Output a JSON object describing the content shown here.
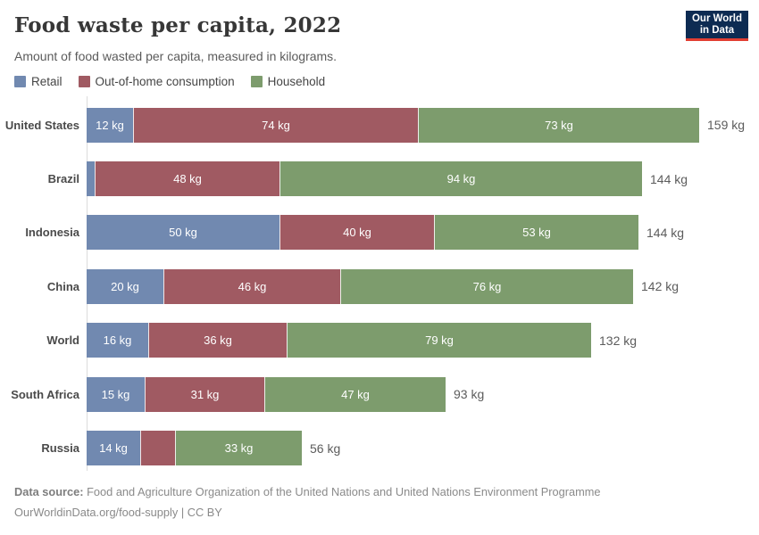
{
  "header": {
    "title": "Food waste per capita, 2022",
    "subtitle": "Amount of food wasted per capita, measured in kilograms.",
    "logo": {
      "line1": "Our World",
      "line2": "in Data"
    }
  },
  "colors": {
    "retail": "#7189b0",
    "out_of_home": "#a05a62",
    "household": "#7d9c6d",
    "logo_bg": "#0d2b52",
    "logo_stripe": "#e23e32",
    "axis_line": "#dcdcdc"
  },
  "legend": [
    {
      "label": "Retail",
      "color": "#7189b0"
    },
    {
      "label": "Out-of-home consumption",
      "color": "#a05a62"
    },
    {
      "label": "Household",
      "color": "#7d9c6d"
    }
  ],
  "chart_data": {
    "type": "bar",
    "orientation": "horizontal",
    "stacked": true,
    "unit": "kg",
    "grid": false,
    "legend_position": "top",
    "xlim": [
      0,
      159
    ],
    "categories": [
      "United States",
      "Brazil",
      "Indonesia",
      "China",
      "World",
      "South Africa",
      "Russia"
    ],
    "series_names": [
      "Retail",
      "Out-of-home consumption",
      "Household"
    ],
    "rows": [
      {
        "country": "United States",
        "values": [
          12,
          74,
          73
        ],
        "labels": [
          "12 kg",
          "74 kg",
          "73 kg"
        ],
        "total": 159,
        "total_label": "159 kg"
      },
      {
        "country": "Brazil",
        "values": [
          2,
          48,
          94
        ],
        "labels": [
          "",
          "48 kg",
          "94 kg"
        ],
        "total": 144,
        "total_label": "144 kg"
      },
      {
        "country": "Indonesia",
        "values": [
          50,
          40,
          53
        ],
        "labels": [
          "50 kg",
          "40 kg",
          "53 kg"
        ],
        "total": 144,
        "total_label": "144 kg"
      },
      {
        "country": "China",
        "values": [
          20,
          46,
          76
        ],
        "labels": [
          "20 kg",
          "46 kg",
          "76 kg"
        ],
        "total": 142,
        "total_label": "142 kg"
      },
      {
        "country": "World",
        "values": [
          16,
          36,
          79
        ],
        "labels": [
          "16 kg",
          "36 kg",
          "79 kg"
        ],
        "total": 132,
        "total_label": "132 kg"
      },
      {
        "country": "South Africa",
        "values": [
          15,
          31,
          47
        ],
        "labels": [
          "15 kg",
          "31 kg",
          "47 kg"
        ],
        "total": 93,
        "total_label": "93 kg"
      },
      {
        "country": "Russia",
        "values": [
          14,
          9,
          33
        ],
        "labels": [
          "14 kg",
          "",
          "33 kg"
        ],
        "total": 56,
        "total_label": "56 kg"
      }
    ]
  },
  "footer": {
    "source_label": "Data source:",
    "source_text": "Food and Agriculture Organization of the United Nations and United Nations Environment Programme",
    "link_text": "OurWorldinData.org/food-supply | CC BY"
  }
}
